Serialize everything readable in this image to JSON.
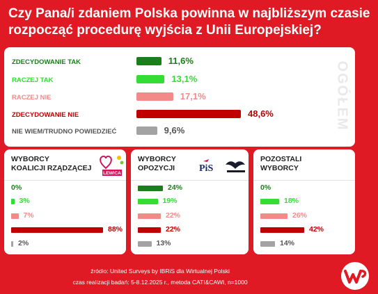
{
  "title": {
    "line1": "Czy Pana/i zdaniem Polska powinna w najbliższym czasie",
    "line2": "rozpocząć procedurę wyjścia z Unii Europejskiej?"
  },
  "main": {
    "side_label": "OGÓŁEM",
    "colors": {
      "zdecydowanie_tak": "#1a7f1a",
      "raczej_tak": "#33dd33",
      "raczej_nie": "#f28a8a",
      "zdecydowanie_nie": "#c00000",
      "nie_wiem": "#a3a3a3"
    }
  },
  "chart_data": [
    {
      "type": "bar",
      "title": "",
      "categories": [
        "ZDECYDOWANIE TAK",
        "RACZEJ TAK",
        "RACZEJ NIE",
        "ZDECYDOWANIE NIE",
        "NIE WIEM/TRUDNO POWIEDZIEĆ"
      ],
      "values": [
        11.6,
        13.1,
        17.1,
        48.6,
        9.6
      ],
      "value_labels": [
        "11,6%",
        "13,1%",
        "17,1%",
        "48,6%",
        "9,6%"
      ],
      "side_label": "OGÓŁEM"
    },
    {
      "type": "bar",
      "title": "WYBORCY KOALICJI RZĄDZĄCEJ",
      "title_lines": [
        "WYBORCY",
        "KOALICJI RZĄDZĄCEJ"
      ],
      "values": [
        0,
        3,
        7,
        88,
        2
      ],
      "value_labels": [
        "0%",
        "3%",
        "7%",
        "88%",
        "2%"
      ]
    },
    {
      "type": "bar",
      "title": "WYBORCY OPOZYCJI",
      "title_lines": [
        "WYBORCY",
        "OPOZYCJI"
      ],
      "values": [
        24,
        19,
        22,
        22,
        13
      ],
      "value_labels": [
        "24%",
        "19%",
        "22%",
        "22%",
        "13%"
      ]
    },
    {
      "type": "bar",
      "title": "POZOSTALI WYBORCY",
      "title_lines": [
        "POZOSTALI",
        "WYBORCY"
      ],
      "values": [
        0,
        18,
        26,
        42,
        14
      ],
      "value_labels": [
        "0%",
        "18%",
        "26%",
        "42%",
        "14%"
      ]
    }
  ],
  "logos": {
    "lewica": "LEWICA",
    "pis": "PiS"
  },
  "footer": {
    "source": "źródło: United Surveys by IBRiS dla Wirtualnej Polski",
    "method": "czas realizacji badań: 5-8.12.2025 r., metoda CATI&CAWI, n=1000"
  }
}
